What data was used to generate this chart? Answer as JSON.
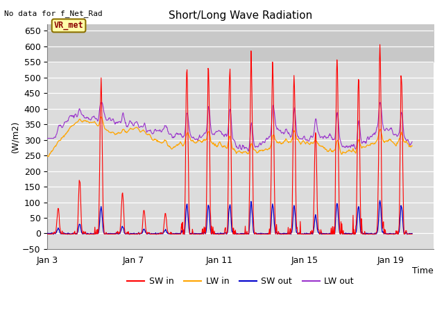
{
  "title": "Short/Long Wave Radiation",
  "xlabel": "Time",
  "ylabel": "(W/m2)",
  "top_left_text": "No data for f_Net_Rad",
  "box_label": "VR_met",
  "ylim": [
    -50,
    670
  ],
  "yticks": [
    -50,
    0,
    50,
    100,
    150,
    200,
    250,
    300,
    350,
    400,
    450,
    500,
    550,
    600,
    650
  ],
  "xtick_labels": [
    "Jan 3",
    "Jan 7",
    "Jan 11",
    "Jan 15",
    "Jan 19"
  ],
  "xtick_positions": [
    3,
    7,
    11,
    15,
    19
  ],
  "xlim": [
    3,
    21
  ],
  "legend_labels": [
    "SW in",
    "LW in",
    "SW out",
    "LW out"
  ],
  "colors": {
    "SW_in": "#ff0000",
    "LW_in": "#ffa500",
    "SW_out": "#0000cc",
    "LW_out": "#9932cc"
  },
  "bg_color": "#dcdcdc",
  "grid_color": "#ffffff",
  "top_bg_color": "#c8c8c8"
}
